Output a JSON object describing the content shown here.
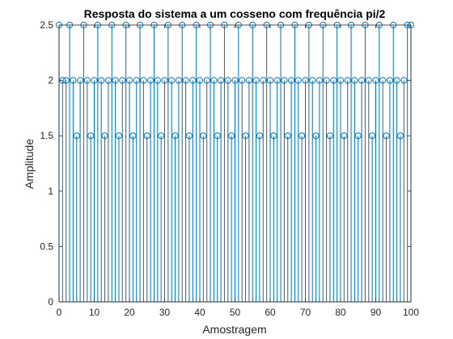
{
  "chart_data": {
    "type": "stem",
    "title": "Resposta do sistema a um cosseno com frequência pi/2",
    "xlabel": "Amostragem",
    "ylabel": "Amplitude",
    "xlim": [
      0,
      100
    ],
    "ylim": [
      0,
      2.5
    ],
    "xticks": [
      "0",
      "10",
      "20",
      "30",
      "40",
      "50",
      "60",
      "70",
      "80",
      "90",
      "100"
    ],
    "yticks": [
      "0",
      "0.5",
      "1",
      "1.5",
      "2",
      "2.5"
    ],
    "grid": false,
    "legend": "none",
    "series": [
      {
        "x": [
          0,
          1,
          2,
          3,
          4,
          5,
          6,
          7,
          8,
          9,
          10,
          11,
          12,
          13,
          14,
          15,
          16,
          17,
          18,
          19,
          20,
          21,
          22,
          23,
          24,
          25,
          26,
          27,
          28,
          29,
          30,
          31,
          32,
          33,
          34,
          35,
          36,
          37,
          38,
          39,
          40,
          41,
          42,
          43,
          44,
          45,
          46,
          47,
          48,
          49,
          50,
          51,
          52,
          53,
          54,
          55,
          56,
          57,
          58,
          59,
          60,
          61,
          62,
          63,
          64,
          65,
          66,
          67,
          68,
          69,
          70,
          71,
          72,
          73,
          74,
          75,
          76,
          77,
          78,
          79,
          80,
          81,
          82,
          83,
          84,
          85,
          86,
          87,
          88,
          89,
          90,
          91,
          92,
          93,
          94,
          95,
          96,
          97,
          98,
          99,
          100
        ],
        "values": [
          2.5,
          2,
          2,
          2.5,
          2,
          1.5,
          2,
          2.5,
          2,
          1.5,
          2,
          2.5,
          2,
          1.5,
          2,
          2.5,
          2,
          1.5,
          2,
          2.5,
          2,
          1.5,
          2,
          2.5,
          2,
          1.5,
          2,
          2.5,
          2,
          1.5,
          2,
          2.5,
          2,
          1.5,
          2,
          2.5,
          2,
          1.5,
          2,
          2.5,
          2,
          1.5,
          2,
          2.5,
          2,
          1.5,
          2,
          2.5,
          2,
          1.5,
          2,
          2.5,
          2,
          1.5,
          2,
          2.5,
          2,
          1.5,
          2,
          2.5,
          2,
          1.5,
          2,
          2.5,
          2,
          1.5,
          2,
          2.5,
          2,
          1.5,
          2,
          2.5,
          2,
          1.5,
          2,
          2.5,
          2,
          1.5,
          2,
          2.5,
          2,
          1.5,
          2,
          2.5,
          2,
          1.5,
          2,
          2.5,
          2,
          1.5,
          2,
          2.5,
          2,
          1.5,
          2,
          2.5,
          2,
          1.5,
          2,
          2.5,
          2.5
        ]
      }
    ],
    "colors": {
      "stem": "#0072BD",
      "axes": "#262626"
    }
  }
}
